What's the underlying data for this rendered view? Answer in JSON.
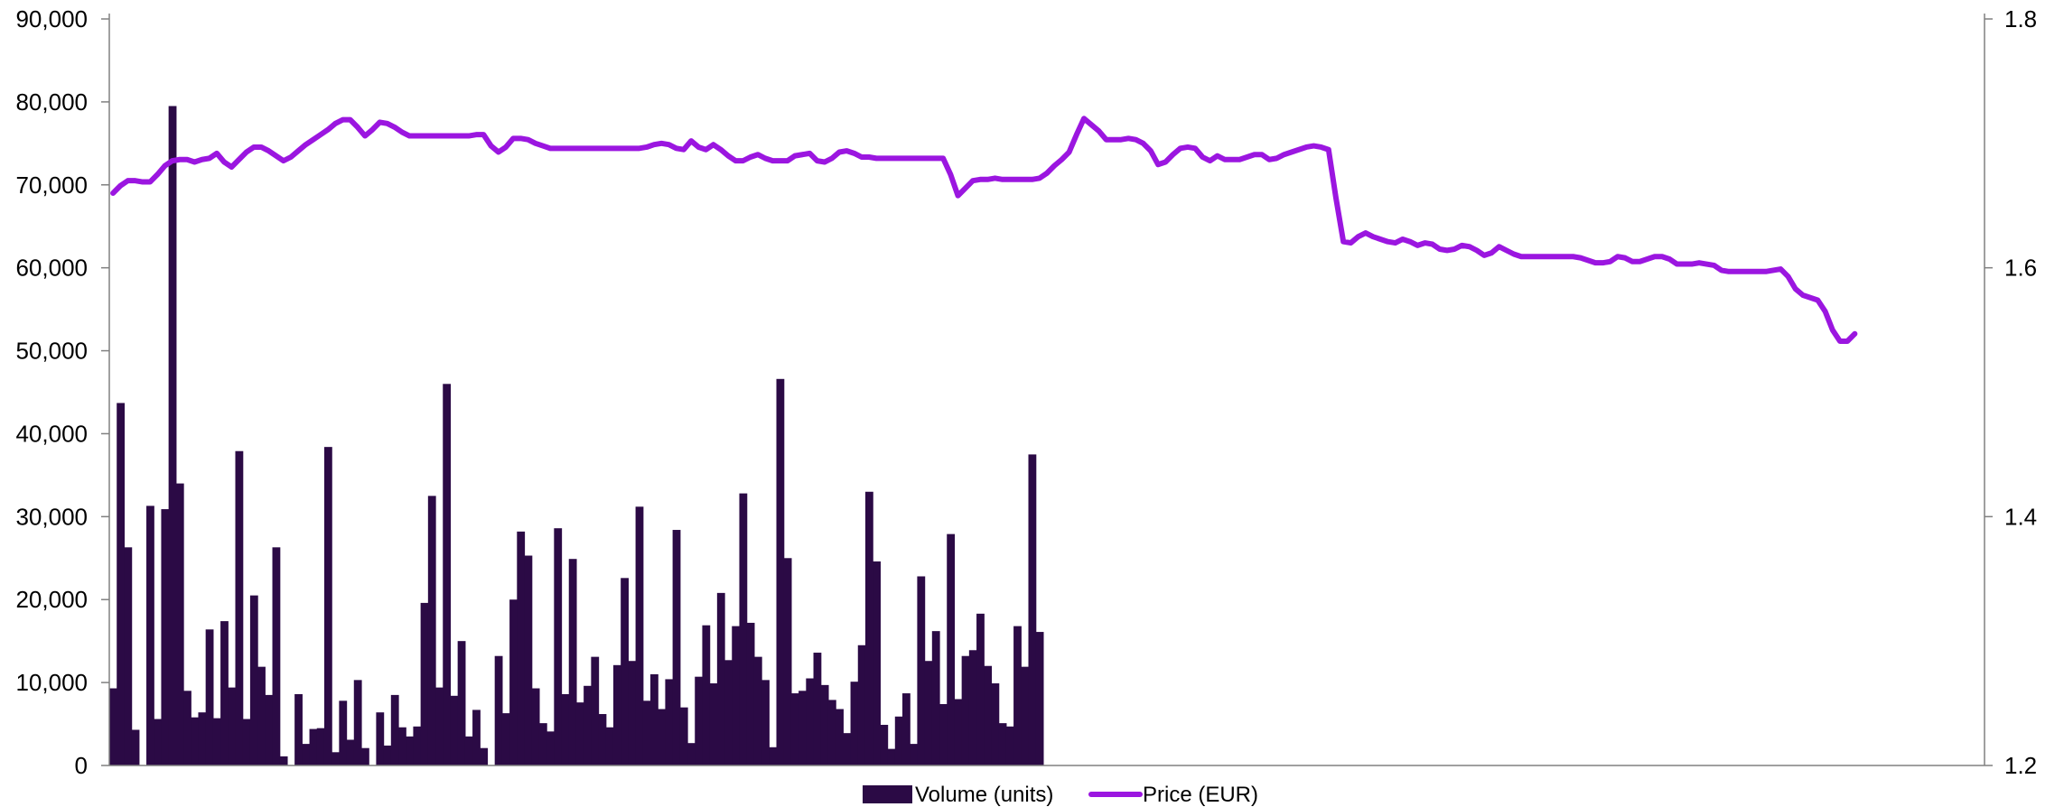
{
  "chart_data": {
    "type": "bar",
    "combo": "bar+line",
    "title": "",
    "xlabel": "",
    "ylabel": "",
    "grid": false,
    "legend_position": "bottom",
    "y_left": {
      "lim": [
        0,
        90000
      ],
      "ticks": [
        0,
        10000,
        20000,
        30000,
        40000,
        50000,
        60000,
        70000,
        80000,
        90000
      ],
      "tick_labels": [
        "0",
        "10,000",
        "20,000",
        "30,000",
        "40,000",
        "50,000",
        "60,000",
        "70,000",
        "80,000",
        "90,000"
      ]
    },
    "y_right": {
      "lim": [
        1.2,
        1.8
      ],
      "ticks": [
        1.2,
        1.4,
        1.6,
        1.8
      ],
      "tick_labels": [
        "1.2",
        "1.4",
        "1.6",
        "1.8"
      ]
    },
    "x_slot_count": 253,
    "series": [
      {
        "name": "Volume (units)",
        "type": "bar",
        "axis": "left",
        "color": "#2b0a45",
        "values": [
          9300,
          43700,
          26300,
          4300,
          0,
          31300,
          5600,
          30900,
          79500,
          34000,
          9000,
          5800,
          6400,
          16400,
          5700,
          17400,
          9400,
          37900,
          5600,
          20500,
          11900,
          8500,
          26300,
          1100,
          0,
          8600,
          2600,
          4400,
          4500,
          38400,
          1600,
          7800,
          3100,
          10300,
          2100,
          0,
          6400,
          2400,
          8500,
          4600,
          3500,
          4700,
          19600,
          32500,
          9400,
          46000,
          8400,
          15000,
          3500,
          6700,
          2100,
          0,
          13200,
          6300,
          20000,
          28200,
          25300,
          9300,
          5100,
          4100,
          28600,
          8600,
          24900,
          7600,
          9600,
          13100,
          6200,
          4600,
          12100,
          22600,
          12600,
          31200,
          7800,
          11000,
          6800,
          10400,
          28400,
          7000,
          2700,
          10700,
          16900,
          9900,
          20800,
          12700,
          16800,
          32800,
          17200,
          13100,
          10300,
          2200,
          46600,
          25000,
          8700,
          9000,
          10500,
          13600,
          9700,
          7900,
          6800,
          3900,
          10100,
          14500,
          33000,
          24600,
          4900,
          2000,
          5900,
          8700,
          2600,
          22800,
          12600,
          16200,
          7400,
          27900,
          8000,
          13200,
          13900,
          18300,
          12000,
          9900,
          5100,
          4700,
          16800,
          11900,
          37500,
          16100
        ]
      },
      {
        "name": "Price (EUR)",
        "type": "line",
        "axis": "right",
        "color": "#9b16e0",
        "values": [
          1.66,
          1.666,
          1.67,
          1.67,
          1.669,
          1.669,
          1.675,
          1.682,
          1.686,
          1.687,
          1.687,
          1.685,
          1.687,
          1.688,
          1.692,
          1.685,
          1.681,
          1.687,
          1.693,
          1.697,
          1.697,
          1.694,
          1.69,
          1.686,
          1.689,
          1.694,
          1.699,
          1.703,
          1.707,
          1.711,
          1.716,
          1.719,
          1.719,
          1.713,
          1.706,
          1.711,
          1.717,
          1.716,
          1.713,
          1.709,
          1.706,
          1.706,
          1.706,
          1.706,
          1.706,
          1.706,
          1.706,
          1.706,
          1.706,
          1.707,
          1.707,
          1.698,
          1.693,
          1.697,
          1.704,
          1.704,
          1.703,
          1.7,
          1.698,
          1.696,
          1.696,
          1.696,
          1.696,
          1.696,
          1.696,
          1.696,
          1.696,
          1.696,
          1.696,
          1.696,
          1.696,
          1.696,
          1.697,
          1.699,
          1.7,
          1.699,
          1.696,
          1.695,
          1.702,
          1.697,
          1.695,
          1.699,
          1.695,
          1.69,
          1.686,
          1.686,
          1.689,
          1.691,
          1.688,
          1.686,
          1.686,
          1.686,
          1.69,
          1.691,
          1.692,
          1.686,
          1.685,
          1.688,
          1.693,
          1.694,
          1.692,
          1.689,
          1.689,
          1.688,
          1.688,
          1.688,
          1.688,
          1.688,
          1.688,
          1.688,
          1.688,
          1.688,
          1.688,
          1.675,
          1.658,
          1.664,
          1.67,
          1.671,
          1.671,
          1.672,
          1.671,
          1.671,
          1.671,
          1.671,
          1.671,
          1.672,
          1.676,
          1.682,
          1.687,
          1.693,
          1.707,
          1.72,
          1.715,
          1.71,
          1.703,
          1.703,
          1.703,
          1.704,
          1.703,
          1.7,
          1.694,
          1.683,
          1.685,
          1.691,
          1.696,
          1.697,
          1.696,
          1.689,
          1.686,
          1.69,
          1.687,
          1.687,
          1.687,
          1.689,
          1.691,
          1.691,
          1.687,
          1.688,
          1.691,
          1.693,
          1.695,
          1.697,
          1.698,
          1.697,
          1.695,
          1.656,
          1.621,
          1.62,
          1.625,
          1.628,
          1.625,
          1.623,
          1.621,
          1.62,
          1.623,
          1.621,
          1.618,
          1.62,
          1.619,
          1.615,
          1.614,
          1.615,
          1.618,
          1.617,
          1.614,
          1.61,
          1.612,
          1.617,
          1.614,
          1.611,
          1.609,
          1.609,
          1.609,
          1.609,
          1.609,
          1.609,
          1.609,
          1.609,
          1.608,
          1.606,
          1.604,
          1.604,
          1.605,
          1.609,
          1.608,
          1.605,
          1.605,
          1.607,
          1.609,
          1.609,
          1.607,
          1.603,
          1.603,
          1.603,
          1.604,
          1.603,
          1.602,
          1.598,
          1.597,
          1.597,
          1.597,
          1.597,
          1.597,
          1.597,
          1.598,
          1.599,
          1.593,
          1.583,
          1.578,
          1.576,
          1.574,
          1.565,
          1.55,
          1.541,
          1.541,
          1.547
        ]
      }
    ]
  }
}
